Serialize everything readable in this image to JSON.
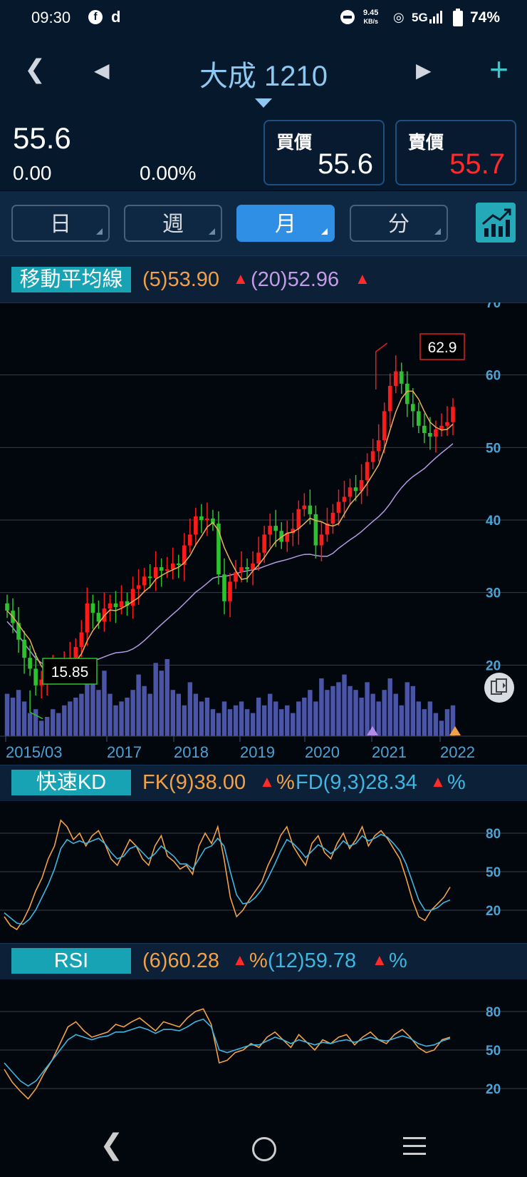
{
  "status_bar": {
    "time": "09:30",
    "net_speed_value": "9.45",
    "net_speed_unit": "KB/s",
    "network": "5G",
    "battery": "74%"
  },
  "header": {
    "title": "大成 1210"
  },
  "quote": {
    "price": "55.6",
    "change": "0.00",
    "change_pct": "0.00%",
    "bid_label": "買價",
    "bid": "55.6",
    "ask_label": "賣價",
    "ask": "55.7"
  },
  "tabs": [
    {
      "label": "日",
      "active": false
    },
    {
      "label": "週",
      "active": false
    },
    {
      "label": "月",
      "active": true
    },
    {
      "label": "分",
      "active": false
    }
  ],
  "ma": {
    "label": "移動平均線",
    "ma5": "(5)53.90",
    "ma20": "(20)52.96",
    "up_arrow": "▲"
  },
  "kd": {
    "label": "快速KD",
    "fk": "FK(9)38.00",
    "fd": "FD(9,3)28.34",
    "pct": "%"
  },
  "rsi": {
    "label": "RSI",
    "r6": "(6)60.28",
    "r12": "(12)59.78",
    "pct": "%"
  },
  "colors": {
    "up": "#ff1a1a",
    "down": "#2ec12e",
    "ma5": "#e8b25a",
    "ma20": "#b49ae0",
    "volume": "#4b55a8",
    "k": "#f2a146",
    "d": "#3fb6e0"
  },
  "chart_data": [
    {
      "type": "candlestick",
      "title": "",
      "x_tick_labels": [
        "2015/03",
        "2017",
        "2018",
        "2019",
        "2020",
        "2021",
        "2022"
      ],
      "y_ticks": [
        20,
        30,
        40,
        50,
        60,
        70
      ],
      "ylim": [
        10,
        70
      ],
      "annotations": {
        "high": "62.9",
        "low": "15.85"
      },
      "close_series": [
        27.5,
        25.8,
        23.5,
        21.0,
        19.5,
        17.2,
        18.0,
        18.5,
        19.2,
        19.5,
        20.2,
        21.0,
        22.5,
        24.5,
        28.5,
        27.2,
        26.0,
        27.8,
        28.5,
        28.0,
        28.8,
        28.2,
        30.5,
        31.0,
        32.2,
        32.0,
        33.5,
        33.0,
        33.2,
        34.0,
        33.8,
        36.5,
        38.0,
        40.5,
        40.0,
        40.2,
        39.5,
        32.5,
        28.8,
        31.5,
        32.8,
        33.5,
        33.2,
        34.0,
        35.5,
        38.0,
        39.2,
        38.5,
        37.0,
        38.2,
        38.8,
        41.5,
        42.0,
        40.8,
        36.5,
        38.0,
        39.5,
        41.0,
        42.5,
        43.2,
        44.5,
        44.0,
        45.5,
        48.0,
        49.5,
        51.0,
        55.0,
        58.5,
        60.5,
        58.8,
        56.0,
        55.0,
        53.0,
        52.0,
        51.5,
        52.5,
        53.0,
        53.5,
        55.6
      ],
      "volume_relative": [
        0.55,
        0.5,
        0.6,
        0.45,
        0.3,
        0.35,
        0.2,
        0.25,
        0.35,
        0.3,
        0.4,
        0.45,
        0.5,
        0.55,
        0.9,
        0.75,
        0.6,
        0.85,
        0.55,
        0.4,
        0.45,
        0.5,
        0.6,
        0.8,
        0.65,
        0.55,
        0.95,
        0.85,
        1.0,
        0.6,
        0.55,
        0.4,
        0.7,
        0.55,
        0.45,
        0.5,
        0.35,
        0.3,
        0.45,
        0.35,
        0.4,
        0.45,
        0.35,
        0.3,
        0.5,
        0.4,
        0.55,
        0.45,
        0.35,
        0.4,
        0.3,
        0.45,
        0.5,
        0.6,
        0.45,
        0.75,
        0.6,
        0.65,
        0.7,
        0.8,
        0.65,
        0.6,
        0.5,
        0.7,
        0.55,
        0.45,
        0.6,
        0.75,
        0.55,
        0.4,
        0.7,
        0.65,
        0.45,
        0.35,
        0.45,
        0.3,
        0.2,
        0.35,
        0.4
      ]
    },
    {
      "type": "line",
      "title": "快速KD",
      "y_ticks": [
        20,
        50,
        80
      ],
      "series": [
        {
          "name": "FK(9)",
          "values": [
            15,
            8,
            5,
            12,
            22,
            35,
            45,
            60,
            70,
            90,
            85,
            75,
            80,
            70,
            78,
            82,
            72,
            60,
            55,
            65,
            75,
            70,
            60,
            55,
            70,
            78,
            62,
            58,
            52,
            55,
            48,
            70,
            80,
            72,
            85,
            60,
            30,
            15,
            20,
            28,
            35,
            42,
            55,
            65,
            78,
            85,
            70,
            62,
            55,
            72,
            78,
            65,
            60,
            72,
            80,
            68,
            75,
            85,
            70,
            78,
            82,
            76,
            68,
            60,
            45,
            28,
            15,
            12,
            20,
            25,
            30,
            38
          ]
        },
        {
          "name": "FD(9,3)",
          "values": [
            18,
            14,
            10,
            9,
            13,
            20,
            30,
            40,
            52,
            68,
            75,
            72,
            74,
            72,
            74,
            76,
            72,
            65,
            60,
            62,
            68,
            70,
            65,
            60,
            64,
            70,
            66,
            62,
            56,
            56,
            52,
            60,
            68,
            70,
            76,
            70,
            50,
            32,
            25,
            26,
            30,
            36,
            45,
            55,
            66,
            75,
            72,
            67,
            61,
            66,
            71,
            68,
            64,
            68,
            74,
            70,
            72,
            78,
            74,
            76,
            79,
            77,
            72,
            66,
            56,
            42,
            28,
            20,
            20,
            22,
            26,
            28
          ]
        }
      ]
    },
    {
      "type": "line",
      "title": "RSI",
      "y_ticks": [
        20,
        50,
        80
      ],
      "series": [
        {
          "name": "(6)",
          "values": [
            35,
            25,
            18,
            12,
            20,
            32,
            42,
            55,
            68,
            72,
            65,
            60,
            62,
            64,
            70,
            68,
            72,
            75,
            70,
            65,
            72,
            70,
            68,
            75,
            80,
            82,
            70,
            40,
            42,
            48,
            50,
            55,
            52,
            60,
            64,
            58,
            52,
            62,
            56,
            50,
            58,
            55,
            60,
            62,
            54,
            60,
            64,
            58,
            55,
            62,
            66,
            60,
            52,
            48,
            50,
            58,
            60
          ]
        },
        {
          "name": "(12)",
          "values": [
            40,
            33,
            26,
            22,
            26,
            34,
            42,
            50,
            58,
            62,
            60,
            58,
            60,
            61,
            64,
            64,
            66,
            68,
            66,
            63,
            66,
            66,
            65,
            68,
            72,
            74,
            68,
            50,
            48,
            50,
            52,
            54,
            54,
            57,
            60,
            58,
            55,
            58,
            56,
            54,
            56,
            55,
            57,
            58,
            56,
            58,
            60,
            58,
            57,
            59,
            61,
            59,
            55,
            53,
            54,
            57,
            59
          ]
        }
      ]
    }
  ]
}
